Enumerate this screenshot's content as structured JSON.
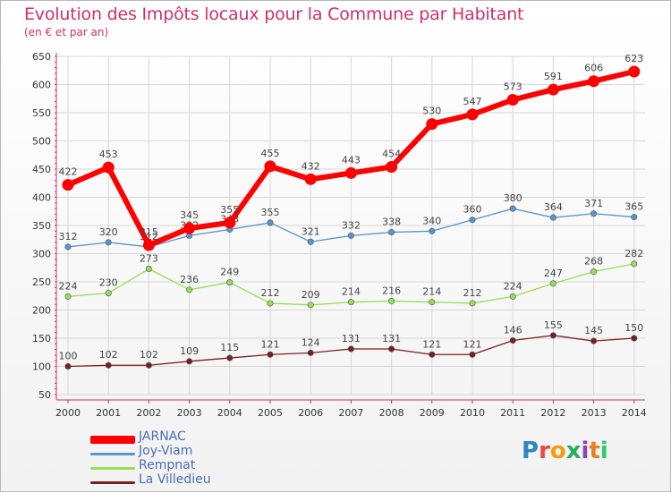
{
  "title": "Evolution des Impôts locaux pour la Commune par Habitant",
  "subtitle": "(en € et par an)",
  "brand": "Proxiti",
  "colors": {
    "title": "#d0306a",
    "axis": "#d0306a",
    "grid": "#d8d8d8",
    "label": "#555555"
  },
  "chart_data": {
    "type": "line",
    "title": "Evolution des Impôts locaux pour la Commune par Habitant",
    "subtitle": "(en € et par an)",
    "xlabel": "",
    "ylabel": "",
    "ylim": [
      50,
      650
    ],
    "yticks": [
      50,
      100,
      150,
      200,
      250,
      300,
      350,
      400,
      450,
      500,
      550,
      600,
      650
    ],
    "grid": true,
    "legend_position": "bottom-left",
    "x": [
      "2000",
      "2001",
      "2002",
      "2003",
      "2004",
      "2005",
      "2006",
      "2007",
      "2008",
      "2009",
      "2010",
      "2011",
      "2012",
      "2013",
      "2014"
    ],
    "series": [
      {
        "name": "JARNAC",
        "color": "#ff0000",
        "width": 6,
        "marker": 6.5,
        "values": [
          422,
          453,
          315,
          345,
          355,
          455,
          432,
          443,
          454,
          530,
          547,
          573,
          591,
          606,
          623
        ]
      },
      {
        "name": "Joy-Viam",
        "color": "#5b94c6",
        "width": 1.3,
        "marker": 3.2,
        "values": [
          312,
          320,
          312,
          332,
          343,
          355,
          321,
          332,
          338,
          340,
          360,
          380,
          364,
          371,
          365
        ]
      },
      {
        "name": "Rempnat",
        "color": "#99dd55",
        "width": 1.3,
        "marker": 3.2,
        "values": [
          224,
          230,
          273,
          236,
          249,
          212,
          209,
          214,
          216,
          214,
          212,
          224,
          247,
          268,
          282
        ]
      },
      {
        "name": "La Villedieu",
        "color": "#7a1f1f",
        "width": 1.3,
        "marker": 3.2,
        "values": [
          100,
          102,
          102,
          109,
          115,
          121,
          124,
          131,
          131,
          121,
          121,
          146,
          155,
          145,
          150
        ]
      }
    ]
  }
}
